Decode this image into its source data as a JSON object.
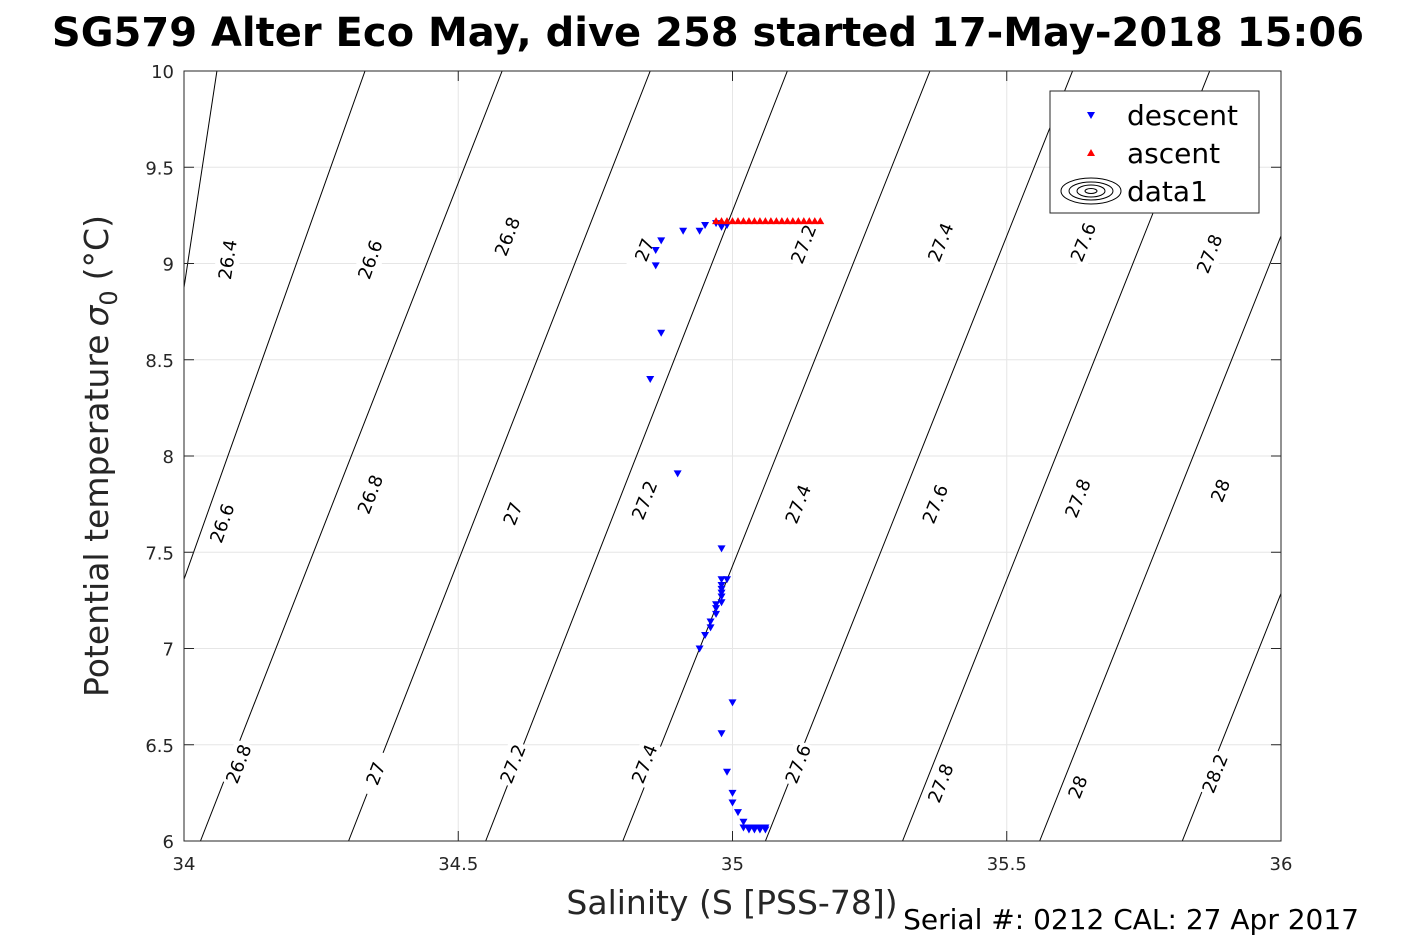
{
  "chart_data": {
    "type": "scatter",
    "title": "SG579 Alter Eco May, dive 258 started 17-May-2018 15:06",
    "xlabel": "Salinity (S [PSS-78])",
    "ylabel": "Potential temperature",
    "ylabel_symbol": "σ",
    "ylabel_sub": "0",
    "ylabel_unit": "(°C)",
    "xlim": [
      34,
      36
    ],
    "ylim": [
      6,
      10
    ],
    "xticks": [
      34,
      34.5,
      35,
      35.5,
      36
    ],
    "xtick_labels": [
      "34",
      "34.5",
      "35",
      "35.5",
      "36"
    ],
    "yticks": [
      6,
      6.5,
      7,
      7.5,
      8,
      8.5,
      9,
      9.5,
      10
    ],
    "ytick_labels": [
      "6",
      "6.5",
      "7",
      "7.5",
      "8",
      "8.5",
      "9",
      "9.5",
      "10"
    ],
    "grid": true,
    "legend_position": "top-right",
    "footer": "Serial #: 0212  CAL: 27 Apr 2017",
    "series": [
      {
        "name": "descent",
        "marker": "triangle-down",
        "color": "#0000ff",
        "points": [
          [
            34.97,
            9.21
          ],
          [
            34.98,
            9.19
          ],
          [
            34.99,
            9.2
          ],
          [
            34.95,
            9.2
          ],
          [
            34.94,
            9.17
          ],
          [
            34.91,
            9.17
          ],
          [
            34.87,
            9.12
          ],
          [
            34.86,
            9.07
          ],
          [
            34.86,
            8.99
          ],
          [
            34.87,
            8.64
          ],
          [
            34.85,
            8.4
          ],
          [
            34.9,
            7.91
          ],
          [
            34.98,
            7.52
          ],
          [
            34.98,
            7.36
          ],
          [
            34.99,
            7.36
          ],
          [
            34.98,
            7.33
          ],
          [
            34.98,
            7.31
          ],
          [
            34.98,
            7.29
          ],
          [
            34.98,
            7.27
          ],
          [
            34.98,
            7.24
          ],
          [
            34.97,
            7.23
          ],
          [
            34.97,
            7.21
          ],
          [
            34.97,
            7.18
          ],
          [
            34.96,
            7.14
          ],
          [
            34.96,
            7.11
          ],
          [
            34.95,
            7.07
          ],
          [
            34.94,
            7.0
          ],
          [
            35.0,
            6.72
          ],
          [
            34.98,
            6.56
          ],
          [
            34.99,
            6.36
          ],
          [
            35.0,
            6.25
          ],
          [
            35.0,
            6.2
          ],
          [
            35.01,
            6.15
          ],
          [
            35.02,
            6.1
          ],
          [
            35.03,
            6.07
          ],
          [
            35.04,
            6.06
          ],
          [
            35.05,
            6.06
          ],
          [
            35.06,
            6.06
          ],
          [
            35.04,
            6.07
          ],
          [
            35.02,
            6.07
          ],
          [
            35.03,
            6.06
          ],
          [
            35.05,
            6.07
          ],
          [
            35.06,
            6.07
          ]
        ]
      },
      {
        "name": "ascent",
        "marker": "triangle-up",
        "color": "#ff0000",
        "points": [
          [
            34.97,
            9.22
          ],
          [
            34.98,
            9.22
          ],
          [
            34.99,
            9.22
          ],
          [
            35.0,
            9.22
          ],
          [
            35.01,
            9.22
          ],
          [
            35.02,
            9.22
          ],
          [
            35.03,
            9.22
          ],
          [
            35.04,
            9.22
          ],
          [
            35.05,
            9.22
          ],
          [
            35.06,
            9.22
          ],
          [
            35.07,
            9.22
          ],
          [
            35.08,
            9.22
          ],
          [
            35.09,
            9.22
          ],
          [
            35.1,
            9.22
          ],
          [
            35.11,
            9.22
          ],
          [
            35.12,
            9.22
          ],
          [
            35.13,
            9.22
          ],
          [
            35.14,
            9.22
          ],
          [
            35.15,
            9.22
          ],
          [
            35.16,
            9.22
          ]
        ]
      },
      {
        "name": "data1",
        "marker": "contour"
      }
    ],
    "contours": [
      {
        "level": "26.4",
        "line": [
          [
            33.98,
            8.5
          ],
          [
            34.06,
            10
          ]
        ],
        "labels": [
          [
            34.08,
            9.02
          ]
        ]
      },
      {
        "level": "26.6",
        "line": [
          [
            33.98,
            7.2
          ],
          [
            34.33,
            10
          ]
        ],
        "labels": [
          [
            34.07,
            7.65
          ],
          [
            34.34,
            9.02
          ]
        ]
      },
      {
        "level": "26.8",
        "line": [
          [
            34.03,
            6
          ],
          [
            34.58,
            10
          ]
        ],
        "labels": [
          [
            34.1,
            6.4
          ],
          [
            34.34,
            7.8
          ],
          [
            34.59,
            9.14
          ]
        ]
      },
      {
        "level": "27",
        "line": [
          [
            34.3,
            6
          ],
          [
            34.85,
            10
          ]
        ],
        "labels": [
          [
            34.35,
            6.35
          ],
          [
            34.6,
            7.7
          ],
          [
            34.84,
            9.07
          ]
        ]
      },
      {
        "level": "27.2",
        "line": [
          [
            34.55,
            6
          ],
          [
            35.1,
            10
          ]
        ],
        "labels": [
          [
            34.6,
            6.4
          ],
          [
            34.84,
            7.77
          ],
          [
            35.13,
            9.1
          ]
        ]
      },
      {
        "level": "27.4",
        "line": [
          [
            34.8,
            6
          ],
          [
            35.36,
            10
          ]
        ],
        "labels": [
          [
            34.84,
            6.4
          ],
          [
            35.12,
            7.75
          ],
          [
            35.38,
            9.11
          ]
        ]
      },
      {
        "level": "27.6",
        "line": [
          [
            35.06,
            6
          ],
          [
            35.62,
            10
          ]
        ],
        "labels": [
          [
            35.12,
            6.4
          ],
          [
            35.37,
            7.75
          ],
          [
            35.64,
            9.11
          ]
        ]
      },
      {
        "level": "27.8",
        "line": [
          [
            35.31,
            6
          ],
          [
            35.87,
            10
          ]
        ],
        "labels": [
          [
            35.38,
            6.3
          ],
          [
            35.63,
            7.78
          ],
          [
            35.87,
            9.05
          ]
        ]
      },
      {
        "level": "28",
        "line": [
          [
            35.56,
            6
          ],
          [
            36.12,
            10
          ]
        ],
        "labels": [
          [
            35.63,
            6.28
          ],
          [
            35.89,
            7.82
          ]
        ]
      },
      {
        "level": "28.2",
        "line": [
          [
            35.82,
            6
          ],
          [
            36.38,
            10
          ]
        ],
        "labels": [
          [
            35.88,
            6.35
          ]
        ]
      }
    ]
  }
}
